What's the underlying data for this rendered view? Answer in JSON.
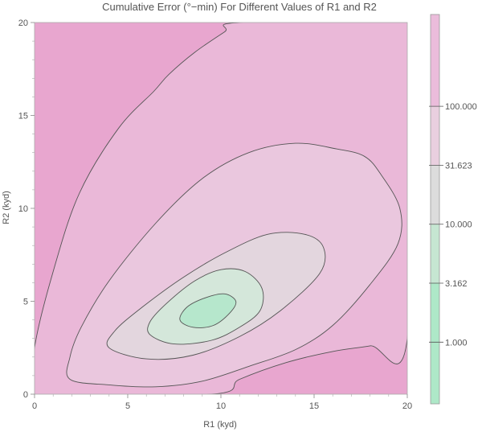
{
  "chart_data": {
    "type": "contour",
    "title": "Cumulative Error (°−min) For Different Values of R1 and R2",
    "xlabel": "R1 (kyd)",
    "ylabel": "R2 (kyd)",
    "xlim": [
      0,
      20
    ],
    "ylim": [
      0,
      20
    ],
    "x_ticks": [
      {
        "value": 0,
        "label": "0"
      },
      {
        "value": 5,
        "label": "5"
      },
      {
        "value": 10,
        "label": "10"
      },
      {
        "value": 15,
        "label": "15"
      },
      {
        "value": 20,
        "label": "20"
      }
    ],
    "y_ticks": [
      {
        "value": 0,
        "label": "0"
      },
      {
        "value": 5,
        "label": "5"
      },
      {
        "value": 10,
        "label": "10"
      },
      {
        "value": 15,
        "label": "15"
      },
      {
        "value": 20,
        "label": "20"
      }
    ],
    "legend": {
      "placement": "right",
      "scale": "log",
      "range": [
        0.3,
        600
      ],
      "ticks": [
        {
          "value": 1.0,
          "label": "1.000"
        },
        {
          "value": 3.162,
          "label": "3.162"
        },
        {
          "value": 10.0,
          "label": "10.000"
        },
        {
          "value": 31.623,
          "label": "31.623"
        },
        {
          "value": 100.0,
          "label": "100.000"
        }
      ],
      "bands": [
        {
          "from": 0.3,
          "to": 3.162,
          "color": "#aee8c8"
        },
        {
          "from": 3.162,
          "to": 10.0,
          "color": "#c6e6d2"
        },
        {
          "from": 10.0,
          "to": 31.623,
          "color": "#dcdcdc"
        },
        {
          "from": 31.623,
          "to": 100.0,
          "color": "#e9cfdf"
        },
        {
          "from": 100.0,
          "to": 600,
          "color": "#ebbcdb"
        }
      ]
    },
    "levels": [
      {
        "value": 300,
        "color": "#e8a6cf",
        "polygon": [
          [
            0,
            20
          ],
          [
            20,
            20
          ],
          [
            20,
            0
          ],
          [
            0,
            0
          ]
        ]
      },
      {
        "value": 100,
        "color": "#eab8d8",
        "polygon": [
          [
            0,
            2.5
          ],
          [
            1,
            6.6
          ],
          [
            2.4,
            10.8
          ],
          [
            4.5,
            14.3
          ],
          [
            6.4,
            16.3
          ],
          [
            7.2,
            17.2
          ],
          [
            8.6,
            18.4
          ],
          [
            10.2,
            19.5
          ],
          [
            11,
            20
          ],
          [
            20,
            20
          ],
          [
            20,
            3
          ],
          [
            18,
            2.6
          ],
          [
            16,
            2.3
          ],
          [
            13.5,
            1.7
          ],
          [
            11,
            0.8
          ],
          [
            9.5,
            0
          ],
          [
            0,
            0
          ]
        ]
      },
      {
        "value": 31.623,
        "color": "#eac7de",
        "polygon": [
          [
            1.9,
            0.8
          ],
          [
            4,
            0.5
          ],
          [
            6.5,
            0.4
          ],
          [
            9,
            0.7
          ],
          [
            11.5,
            1.5
          ],
          [
            14,
            2.4
          ],
          [
            16,
            3.7
          ],
          [
            18,
            5.9
          ],
          [
            19.5,
            8.1
          ],
          [
            19.6,
            10
          ],
          [
            18.6,
            11.8
          ],
          [
            17.7,
            12.8
          ],
          [
            16.2,
            13.2
          ],
          [
            14,
            13.5
          ],
          [
            11.5,
            13
          ],
          [
            9,
            11.6
          ],
          [
            6.5,
            9.2
          ],
          [
            4,
            6.1
          ],
          [
            2.5,
            3.6
          ],
          [
            1.9,
            2
          ]
        ]
      },
      {
        "value": 10.0,
        "color": "#e3d6de",
        "polygon": [
          [
            4,
            2.5
          ],
          [
            6,
            1.9
          ],
          [
            8.5,
            2.1
          ],
          [
            11,
            3.1
          ],
          [
            13.2,
            4.5
          ],
          [
            15.3,
            6.5
          ],
          [
            15.5,
            7.9
          ],
          [
            14.5,
            8.6
          ],
          [
            12.5,
            8.6
          ],
          [
            10.2,
            7.6
          ],
          [
            8,
            6.3
          ],
          [
            5.8,
            4.7
          ],
          [
            4.3,
            3.4
          ]
        ]
      },
      {
        "value": 3.162,
        "color": "#d4e7da",
        "polygon": [
          [
            6.2,
            3.2
          ],
          [
            7.5,
            2.7
          ],
          [
            9.5,
            2.9
          ],
          [
            11,
            3.6
          ],
          [
            12.1,
            4.5
          ],
          [
            12.2,
            5.7
          ],
          [
            11.3,
            6.6
          ],
          [
            10,
            6.7
          ],
          [
            8.6,
            6.1
          ],
          [
            7.1,
            4.9
          ],
          [
            6.2,
            3.9
          ]
        ]
      },
      {
        "value": 1.0,
        "color": "#b6e7cc",
        "polygon": [
          [
            7.8,
            4.0
          ],
          [
            8.5,
            3.6
          ],
          [
            9.6,
            3.7
          ],
          [
            10.5,
            4.4
          ],
          [
            10.8,
            5.0
          ],
          [
            10.2,
            5.4
          ],
          [
            9.2,
            5.2
          ],
          [
            8.2,
            4.7
          ]
        ]
      }
    ]
  }
}
